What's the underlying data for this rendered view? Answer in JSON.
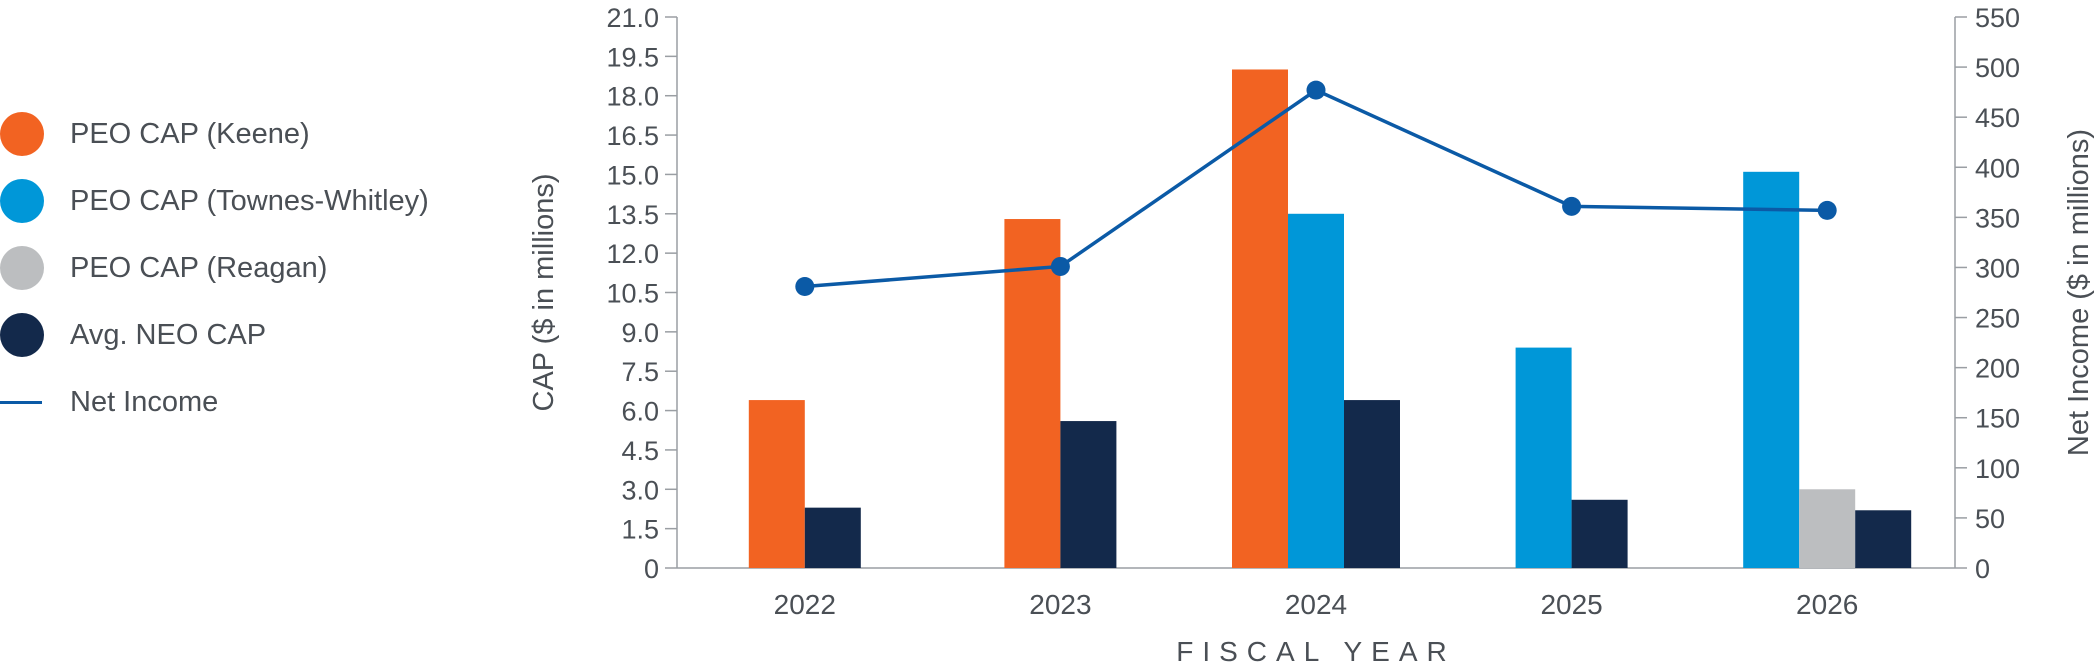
{
  "chart_data": {
    "type": "bar",
    "categories": [
      "2022",
      "2023",
      "2024",
      "2025",
      "2026"
    ],
    "xlabel": "FISCAL YEAR",
    "ylabel": "CAP ($ in millions)",
    "y2label": "Net Income ($ in millions)",
    "ylim": [
      0,
      21
    ],
    "y2lim": [
      0,
      550
    ],
    "yticks": [
      "0",
      "1.5",
      "3.0",
      "4.5",
      "6.0",
      "7.5",
      "9.0",
      "10.5",
      "12.0",
      "13.5",
      "15.0",
      "16.5",
      "18.0",
      "19.5",
      "21.0"
    ],
    "y2ticks": [
      "0",
      "50",
      "100",
      "150",
      "200",
      "250",
      "300",
      "350",
      "400",
      "450",
      "500",
      "550"
    ],
    "legend_position": "left",
    "grid": false,
    "series": [
      {
        "name": "PEO CAP (Keene)",
        "color": "#f26322",
        "type": "bar",
        "values": [
          6.4,
          13.3,
          19.0,
          null,
          null
        ]
      },
      {
        "name": "PEO CAP (Townes-Whitley)",
        "color": "#0097d8",
        "type": "bar",
        "values": [
          null,
          null,
          13.5,
          8.4,
          15.1
        ]
      },
      {
        "name": "PEO CAP (Reagan)",
        "color": "#bcbec0",
        "type": "bar",
        "values": [
          null,
          null,
          null,
          null,
          3.0
        ]
      },
      {
        "name": "Avg. NEO CAP",
        "color": "#13294b",
        "type": "bar",
        "values": [
          2.3,
          5.6,
          6.4,
          2.6,
          2.2
        ]
      },
      {
        "name": "Net Income",
        "color": "#0b5aa6",
        "type": "line",
        "axis": "right",
        "values": [
          281,
          301,
          477,
          361,
          357
        ]
      }
    ]
  }
}
